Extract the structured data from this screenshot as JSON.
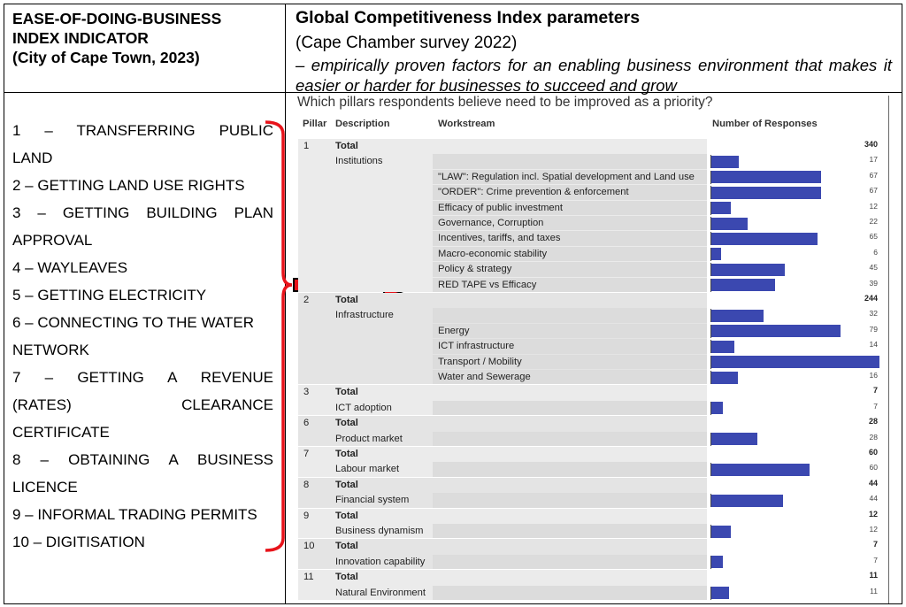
{
  "header": {
    "left_title": [
      "EASE-OF-DOING-BUSINESS",
      "INDEX INDICATOR",
      "(City of Cape Town, 2023)"
    ],
    "right_title": "Global Competitiveness Index parameters",
    "right_subtitle": "(Cape Chamber survey 2022)",
    "right_description": "– empirically proven factors for an enabling business environment that makes it easier or harder for businesses to succeed and grow"
  },
  "indicators": [
    "1 – TRANSFERRING PUBLIC",
    "LAND",
    "2 – GETTING LAND USE RIGHTS",
    "3 – GETTING BUILDING PLAN",
    "APPROVAL",
    "4 – WAYLEAVES",
    "5 – GETTING ELECTRICITY",
    "6 – CONNECTING TO THE WATER",
    "NETWORK",
    "7 – GETTING A REVENUE",
    "(RATES) CLEARANCE",
    "CERTIFICATE",
    "8 – OBTAINING A BUSINESS",
    "LICENCE",
    "9 – INFORMAL TRADING PERMITS",
    "10 – DIGITISATION"
  ],
  "table": {
    "title": "Which pillars respondents believe need to be improved as a priority?",
    "columns": [
      "Pillar",
      "Description",
      "Workstream",
      "Number of Responses"
    ],
    "bar_color": "#3b48b0",
    "arrow_color": "#e8141b"
  },
  "chart_data": {
    "type": "bar",
    "title": "Which pillars respondents believe need to be improved as a priority?",
    "max": 103,
    "rows": [
      {
        "pillar": "1",
        "description": "Total",
        "workstream": "",
        "value": 340,
        "total": true
      },
      {
        "pillar": "",
        "description": "Institutions",
        "workstream": "",
        "value": 17
      },
      {
        "pillar": "",
        "description": "",
        "workstream": "\"LAW\": Regulation incl. Spatial development and Land use",
        "value": 67
      },
      {
        "pillar": "",
        "description": "",
        "workstream": "\"ORDER\": Crime prevention & enforcement",
        "value": 67
      },
      {
        "pillar": "",
        "description": "",
        "workstream": "Efficacy of public investment",
        "value": 12
      },
      {
        "pillar": "",
        "description": "",
        "workstream": "Governance, Corruption",
        "value": 22
      },
      {
        "pillar": "",
        "description": "",
        "workstream": "Incentives, tariffs, and taxes",
        "value": 65
      },
      {
        "pillar": "",
        "description": "",
        "workstream": "Macro-economic stability",
        "value": 6
      },
      {
        "pillar": "",
        "description": "",
        "workstream": "Policy & strategy",
        "value": 45
      },
      {
        "pillar": "",
        "description": "",
        "workstream": "RED TAPE vs Efficacy",
        "value": 39
      },
      {
        "pillar": "2",
        "description": "Total",
        "workstream": "",
        "value": 244,
        "total": true
      },
      {
        "pillar": "",
        "description": "Infrastructure",
        "workstream": "",
        "value": 32
      },
      {
        "pillar": "",
        "description": "",
        "workstream": "Energy",
        "value": 79
      },
      {
        "pillar": "",
        "description": "",
        "workstream": "ICT infrastructure",
        "value": 14
      },
      {
        "pillar": "",
        "description": "",
        "workstream": "Transport / Mobility",
        "value": 103
      },
      {
        "pillar": "",
        "description": "",
        "workstream": "Water and Sewerage",
        "value": 16
      },
      {
        "pillar": "3",
        "description": "Total",
        "workstream": "",
        "value": 7,
        "total": true
      },
      {
        "pillar": "",
        "description": "ICT adoption",
        "workstream": "",
        "value": 7
      },
      {
        "pillar": "6",
        "description": "Total",
        "workstream": "",
        "value": 28,
        "total": true
      },
      {
        "pillar": "",
        "description": "Product market",
        "workstream": "",
        "value": 28
      },
      {
        "pillar": "7",
        "description": "Total",
        "workstream": "",
        "value": 60,
        "total": true
      },
      {
        "pillar": "",
        "description": "Labour market",
        "workstream": "",
        "value": 60
      },
      {
        "pillar": "8",
        "description": "Total",
        "workstream": "",
        "value": 44,
        "total": true
      },
      {
        "pillar": "",
        "description": "Financial system",
        "workstream": "",
        "value": 44
      },
      {
        "pillar": "9",
        "description": "Total",
        "workstream": "",
        "value": 12,
        "total": true
      },
      {
        "pillar": "",
        "description": "Business dynamism",
        "workstream": "",
        "value": 12
      },
      {
        "pillar": "10",
        "description": "Total",
        "workstream": "",
        "value": 7,
        "total": true
      },
      {
        "pillar": "",
        "description": "Innovation capability",
        "workstream": "",
        "value": 7
      },
      {
        "pillar": "11",
        "description": "Total",
        "workstream": "",
        "value": 11,
        "total": true
      },
      {
        "pillar": "",
        "description": "Natural Environment",
        "workstream": "",
        "value": 11
      }
    ]
  }
}
